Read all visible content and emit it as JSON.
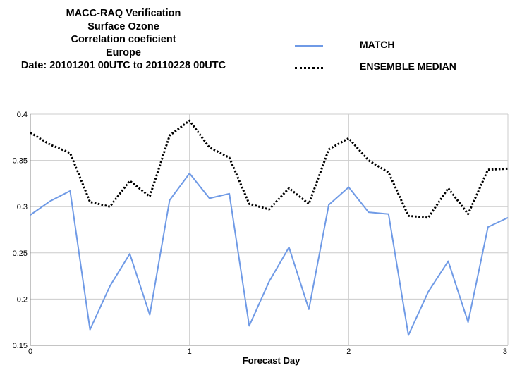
{
  "chart_data": {
    "type": "line",
    "title_lines": [
      "MACC-RAQ Verification",
      "Surface Ozone",
      "Correlation coeficient",
      "Europe",
      "Date: 20101201 00UTC to 20110228 00UTC"
    ],
    "xlabel": "Forecast Day",
    "ylabel": "",
    "xlim": [
      0,
      3
    ],
    "ylim": [
      0.15,
      0.4
    ],
    "x_ticks": [
      0,
      1,
      2,
      3
    ],
    "x_tick_labels": [
      "0",
      "1",
      "2",
      "3"
    ],
    "y_ticks": [
      0.15,
      0.2,
      0.25,
      0.3,
      0.35,
      0.4
    ],
    "y_tick_labels": [
      "0.15",
      "0.2",
      "0.25",
      "0.3",
      "0.35",
      "0.4"
    ],
    "grid": true,
    "legend_position": "top-right",
    "x": [
      0,
      0.125,
      0.25,
      0.375,
      0.5,
      0.625,
      0.75,
      0.875,
      1,
      1.125,
      1.25,
      1.375,
      1.5,
      1.625,
      1.75,
      1.875,
      2,
      2.125,
      2.25,
      2.375,
      2.5,
      2.625,
      2.75,
      2.875,
      3
    ],
    "series": [
      {
        "name": "MATCH",
        "color": "#6f9ae6",
        "style": "solid",
        "values": [
          0.291,
          0.306,
          0.317,
          0.167,
          0.214,
          0.249,
          0.183,
          0.307,
          0.336,
          0.309,
          0.314,
          0.171,
          0.219,
          0.256,
          0.189,
          0.302,
          0.321,
          0.294,
          0.292,
          0.161,
          0.208,
          0.241,
          0.175,
          0.278,
          0.288
        ]
      },
      {
        "name": "ENSEMBLE MEDIAN",
        "color": "#000000",
        "style": "dotted",
        "values": [
          0.38,
          0.367,
          0.358,
          0.305,
          0.3,
          0.328,
          0.311,
          0.377,
          0.393,
          0.364,
          0.353,
          0.303,
          0.297,
          0.32,
          0.303,
          0.362,
          0.374,
          0.35,
          0.337,
          0.29,
          0.288,
          0.32,
          0.292,
          0.34,
          0.341
        ]
      }
    ]
  }
}
